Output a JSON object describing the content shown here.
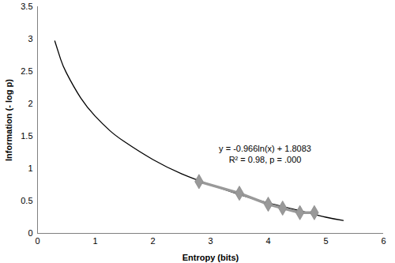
{
  "chart_data": {
    "type": "scatter",
    "x_label": "Entropy (bits)",
    "y_label": "Information (- log p)",
    "annotations": [
      "y = -0.966ln(x) + 1.8083",
      "R² = 0.98, p = .000"
    ],
    "xlim": [
      0,
      6
    ],
    "xticks": [
      0,
      1,
      2,
      3,
      4,
      5,
      6
    ],
    "ylim": [
      0,
      3.5
    ],
    "yticks": [
      0,
      0.5,
      1,
      1.5,
      2,
      2.5,
      3,
      3.5
    ],
    "grid": false,
    "series": [
      {
        "type": "line",
        "color": "#000000",
        "line_style": "solid",
        "x": [
          0.3,
          0.4,
          0.5,
          0.75,
          1,
          1.25,
          1.5,
          2,
          2.5,
          3,
          3.5,
          4,
          4.5,
          5,
          5.3
        ],
        "values": [
          2.97,
          2.69,
          2.48,
          2.09,
          1.81,
          1.59,
          1.42,
          1.14,
          0.92,
          0.75,
          0.6,
          0.47,
          0.36,
          0.25,
          0.2
        ]
      },
      {
        "type": "scatter",
        "color": "#999999",
        "marker": "diamond",
        "line_style": "solid",
        "x": [
          2.8,
          3.5,
          4.0,
          4.25,
          4.55,
          4.8
        ],
        "values": [
          0.8,
          0.62,
          0.45,
          0.39,
          0.32,
          0.32
        ]
      }
    ]
  }
}
